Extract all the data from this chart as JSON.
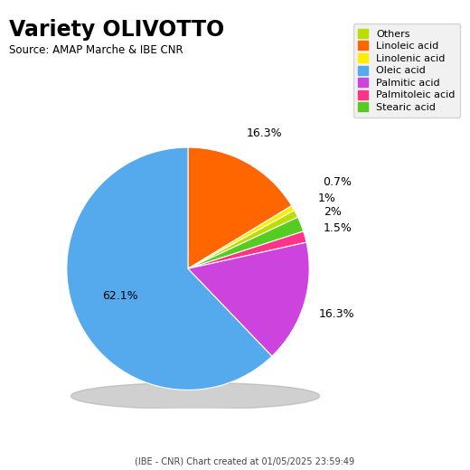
{
  "title": "Variety OLIVOTTO",
  "source": "Source: AMAP Marche & IBE CNR",
  "footer": "(IBE - CNR) Chart created at 01/05/2025 23:59:49",
  "labels": [
    "Others",
    "Linoleic acid",
    "Linolenic acid",
    "Oleic acid",
    "Palmitic acid",
    "Palmitoleic acid",
    "Stearic acid"
  ],
  "values": [
    1.0,
    16.3,
    0.7,
    62.1,
    16.3,
    1.5,
    2.0
  ],
  "colors": [
    "#bbdd00",
    "#ff6600",
    "#ffee00",
    "#55aaee",
    "#cc44dd",
    "#ff3388",
    "#55cc22"
  ],
  "legend_colors": [
    "#bbdd00",
    "#ff6600",
    "#ffee00",
    "#55aaee",
    "#cc44dd",
    "#ff3388",
    "#55cc22"
  ],
  "pie_order": [
    1,
    2,
    0,
    6,
    5,
    4,
    3
  ],
  "label_data": [
    [
      16.3,
      "16.3%",
      1.28,
      0
    ],
    [
      0.7,
      "0.7%",
      1.42,
      0
    ],
    [
      1.0,
      "1%",
      1.28,
      0
    ],
    [
      2.0,
      "2%",
      1.28,
      0
    ],
    [
      1.5,
      "1.5%",
      1.28,
      0
    ],
    [
      16.3,
      "16.3%",
      1.28,
      0
    ],
    [
      62.1,
      "62.1%",
      0.6,
      0
    ]
  ],
  "startangle": 90,
  "background_color": "#ffffff"
}
